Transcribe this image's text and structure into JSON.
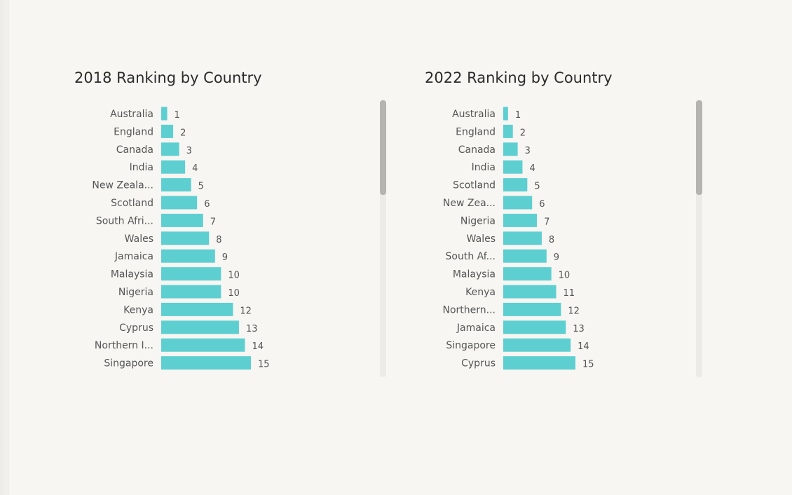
{
  "colors": {
    "bar": "#5dcfd1",
    "background": "#f7f6f2",
    "text": "#555555",
    "title": "#2b2b2b"
  },
  "chart_data": [
    {
      "type": "bar",
      "orientation": "horizontal",
      "title": "2018 Ranking by Country",
      "categories": [
        "Australia",
        "England",
        "Canada",
        "India",
        "New Zeala...",
        "Scotland",
        "South Afri...",
        "Wales",
        "Jamaica",
        "Malaysia",
        "Nigeria",
        "Kenya",
        "Cyprus",
        "Northern I...",
        "Singapore"
      ],
      "values": [
        1,
        2,
        3,
        4,
        5,
        6,
        7,
        8,
        9,
        10,
        10,
        12,
        13,
        14,
        15
      ],
      "xlim": [
        0,
        15
      ],
      "grid": false,
      "data_labels": true
    },
    {
      "type": "bar",
      "orientation": "horizontal",
      "title": "2022 Ranking by Country",
      "categories": [
        "Australia",
        "England",
        "Canada",
        "India",
        "Scotland",
        "New Zea...",
        "Nigeria",
        "Wales",
        "South Af...",
        "Malaysia",
        "Kenya",
        "Northern...",
        "Jamaica",
        "Singapore",
        "Cyprus"
      ],
      "values": [
        1,
        2,
        3,
        4,
        5,
        6,
        7,
        8,
        9,
        10,
        11,
        12,
        13,
        14,
        15
      ],
      "xlim": [
        0,
        15
      ],
      "grid": false,
      "data_labels": true
    }
  ]
}
